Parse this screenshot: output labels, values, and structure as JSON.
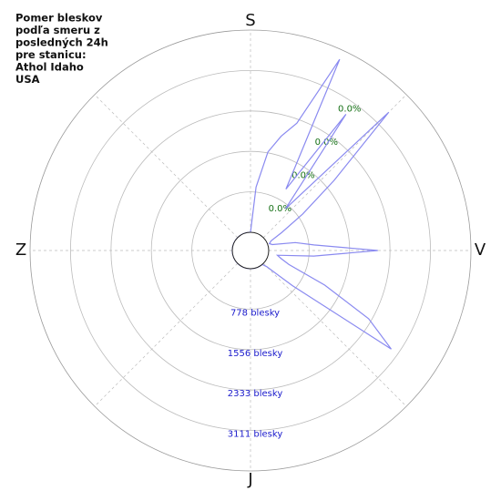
{
  "chart_data": {
    "type": "polar",
    "title": [
      "Pomer bleskov",
      "podľa smeru z",
      "posledných 24h",
      "pre stanicu:",
      "Athol Idaho",
      "USA"
    ],
    "directions": [
      "S",
      "V",
      "J",
      "Z"
    ],
    "values": [
      0,
      874,
      1573,
      1923,
      2255,
      3706,
      1014,
      2849,
      699,
      3408,
      1748,
      874,
      350,
      87,
      35,
      87,
      524,
      874,
      2098,
      874,
      175,
      262,
      437,
      1224,
      2273,
      2954,
      699,
      87,
      0,
      0,
      0,
      0,
      0,
      0,
      0,
      0,
      0,
      0,
      0,
      0,
      0,
      0,
      0,
      0,
      0,
      0,
      0,
      0,
      0,
      0,
      0,
      0,
      0,
      0,
      0,
      0,
      0,
      0,
      0,
      0,
      0,
      0,
      0,
      0,
      0,
      0,
      0,
      0,
      0,
      0,
      0,
      0
    ],
    "color": "#8a8af0",
    "ylim": [
      0,
      3889
    ],
    "yticks": [
      {
        "value": 778,
        "label": "778 blesky"
      },
      {
        "value": 1556,
        "label": "1556 blesky"
      },
      {
        "value": 2333,
        "label": "2333 blesky"
      },
      {
        "value": 3111,
        "label": "3111 blesky"
      }
    ],
    "percent_labels": [
      "0.0%",
      "0.0%",
      "0.0%",
      "0.0%"
    ],
    "grid": true
  }
}
